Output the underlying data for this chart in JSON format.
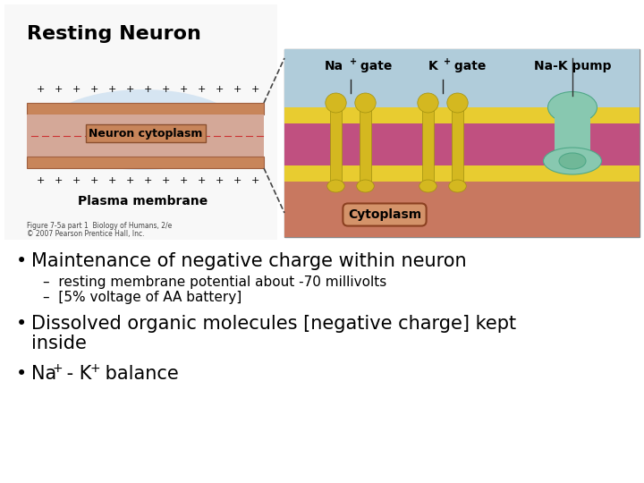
{
  "background_color": "#ffffff",
  "text_color": "#000000",
  "font_family": "DejaVu Sans",
  "bullet1_text": "Maintenance of negative charge within neuron",
  "sub1_text": "–  resting membrane potential about -70 millivolts",
  "sub2_text": "–  [5% voltage of AA battery]",
  "bullet2_line1": "Dissolved organic molecules [negative charge] kept",
  "bullet2_line2": "inside",
  "bullet3_na": "Na",
  "bullet3_k": "K",
  "bullet3_balance": " balance",
  "bullet_fontsize": 15,
  "sub_fontsize": 11,
  "diagram_left_bg": "#ddeeff",
  "diagram_right_bg": "#b8ccd8",
  "membrane_brown": "#c8855a",
  "membrane_inner": "#c8a090",
  "membrane_pink": "#cc6688",
  "membrane_yellow": "#e8cc30",
  "cytoplasm_color": "#c87860",
  "channel_yellow": "#d4b820",
  "pump_teal": "#88c8b0",
  "pump_teal_dark": "#50a888",
  "label_line_color": "#222222",
  "dashed_line_color": "#444444",
  "dashed_red": "#cc3333",
  "caption1": "Figure 7-5a part 1  Biology of Humans, 2/e",
  "caption2": "© 2007 Pearson Prentice Hall, Inc."
}
